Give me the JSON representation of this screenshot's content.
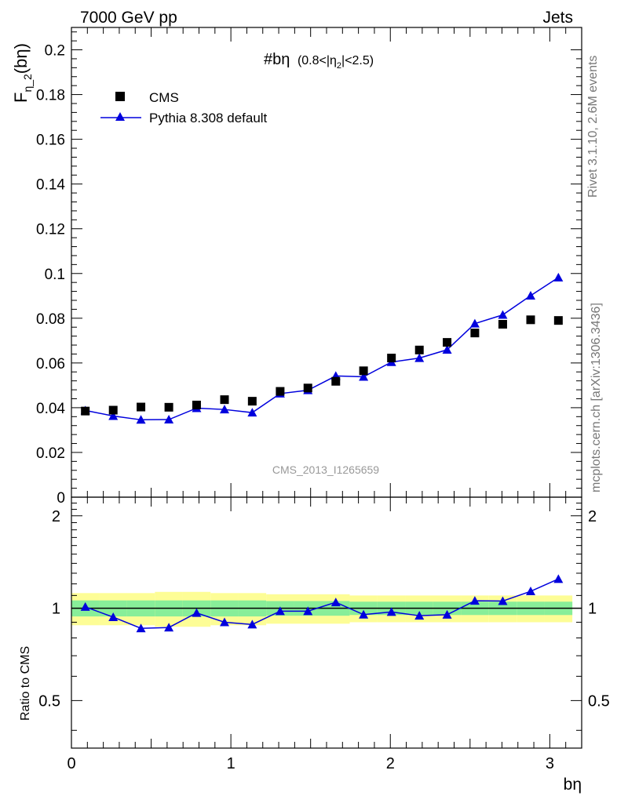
{
  "header": {
    "left": "7000 GeV pp",
    "right": "Jets"
  },
  "side_labels": {
    "rivet": "Rivet 3.1.10,  2.6M events",
    "mcplots": "mcplots.cern.ch [arXiv:1306.3436]"
  },
  "plot_title": {
    "main": "#bη",
    "range_prefix": "(0.8<|η",
    "range_sub": "2",
    "range_suffix": "|<2.5)"
  },
  "y_label": {
    "main": "F",
    "sub": "η_2",
    "arg": "(bη)"
  },
  "x_label": "bη",
  "ratio_label": "Ratio to CMS",
  "watermark": "CMS_2013_I1265659",
  "colors": {
    "data": "#000000",
    "mc": "#0000dd",
    "band_inner": "#88ee99",
    "band_outer": "#fdfd96"
  },
  "chart_data": [
    {
      "type": "scatter",
      "panel": "main",
      "xlim": [
        0,
        3.2
      ],
      "ylim": [
        0,
        0.21
      ],
      "y_ticks": [
        0,
        0.02,
        0.04,
        0.06,
        0.08,
        0.1,
        0.12,
        0.14,
        0.16,
        0.18,
        0.2
      ],
      "y_tick_labels": [
        "0",
        "0.02",
        "0.04",
        "0.06",
        "0.08",
        "0.1",
        "0.12",
        "0.14",
        "0.16",
        "0.18",
        "0.2"
      ],
      "legend_position": "top-left",
      "x": [
        0.087,
        0.262,
        0.436,
        0.611,
        0.785,
        0.96,
        1.134,
        1.309,
        1.483,
        1.658,
        1.832,
        2.007,
        2.182,
        2.356,
        2.53,
        2.705,
        2.88,
        3.054
      ],
      "series": [
        {
          "name": "CMS",
          "marker": "square",
          "values": [
            0.0385,
            0.0389,
            0.0403,
            0.0402,
            0.0412,
            0.0436,
            0.0429,
            0.0473,
            0.0488,
            0.0518,
            0.0565,
            0.0622,
            0.0658,
            0.0692,
            0.0734,
            0.0773,
            0.0793,
            0.079
          ]
        },
        {
          "name": "Pythia 8.308 default",
          "marker": "triangle",
          "values": [
            0.0388,
            0.0363,
            0.0346,
            0.0347,
            0.0398,
            0.0392,
            0.0378,
            0.0463,
            0.0478,
            0.0542,
            0.0538,
            0.0604,
            0.0622,
            0.0659,
            0.0776,
            0.0815,
            0.0901,
            0.0982
          ],
          "errors": [
            0.0008,
            0.0008,
            0.0008,
            0.0008,
            0.0008,
            0.0008,
            0.0008,
            0.0009,
            0.0009,
            0.0012,
            0.001,
            0.001,
            0.001,
            0.001,
            0.0014,
            0.0014,
            0.0015,
            0.0016
          ]
        }
      ]
    },
    {
      "type": "line",
      "panel": "ratio",
      "xlim": [
        0,
        3.2
      ],
      "ylim": [
        0.35,
        2.3
      ],
      "y_scale": "log",
      "y_ticks": [
        0.5,
        1,
        2
      ],
      "y_tick_labels": [
        "0.5",
        "1",
        "2"
      ],
      "x_ticks": [
        0,
        1,
        2,
        3
      ],
      "x_tick_labels": [
        "0",
        "1",
        "2",
        "3"
      ],
      "x": [
        0.087,
        0.262,
        0.436,
        0.611,
        0.785,
        0.96,
        1.134,
        1.309,
        1.483,
        1.658,
        1.832,
        2.007,
        2.182,
        2.356,
        2.53,
        2.705,
        2.88,
        3.054
      ],
      "series": [
        {
          "name": "Pythia 8.308 default",
          "values": [
            1.01,
            0.935,
            0.86,
            0.865,
            0.965,
            0.9,
            0.885,
            0.978,
            0.978,
            1.045,
            0.953,
            0.972,
            0.945,
            0.952,
            1.057,
            1.055,
            1.135,
            1.245
          ],
          "errors": [
            0.02,
            0.02,
            0.02,
            0.02,
            0.02,
            0.02,
            0.02,
            0.02,
            0.02,
            0.022,
            0.018,
            0.017,
            0.016,
            0.016,
            0.018,
            0.018,
            0.018,
            0.018
          ]
        }
      ],
      "band_inner": [
        0.06,
        0.06,
        0.06,
        0.06,
        0.06,
        0.06,
        0.06,
        0.055,
        0.055,
        0.055,
        0.05,
        0.05,
        0.05,
        0.05,
        0.05,
        0.05,
        0.05,
        0.05
      ],
      "band_outer": [
        0.12,
        0.12,
        0.12,
        0.13,
        0.13,
        0.12,
        0.12,
        0.11,
        0.11,
        0.11,
        0.1,
        0.1,
        0.1,
        0.1,
        0.1,
        0.1,
        0.1,
        0.1
      ]
    }
  ]
}
